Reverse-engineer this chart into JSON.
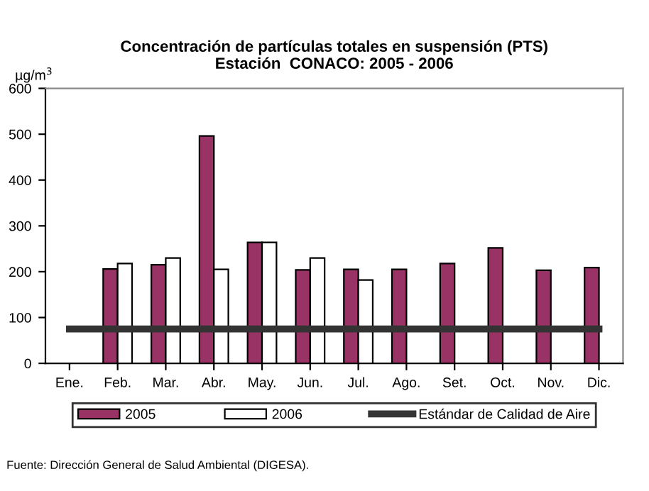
{
  "chart_data": {
    "type": "bar",
    "title": "Concentración de partículas totales en suspensión (PTS)\nEstación  CONACO: 2005 - 2006",
    "ylabel": "µg/m$^{3}$",
    "categories": [
      "Ene.",
      "Feb.",
      "Mar.",
      "Abr.",
      "May.",
      "Jun.",
      "Jul.",
      "Ago.",
      "Set.",
      "Oct.",
      "Nov.",
      "Dic."
    ],
    "series": [
      {
        "name": "2005",
        "color": "#993366",
        "values": [
          null,
          206,
          215,
          496,
          264,
          204,
          205,
          205,
          218,
          252,
          203,
          209
        ]
      },
      {
        "name": "2006",
        "color": "#ffffff",
        "values": [
          null,
          218,
          230,
          205,
          264,
          230,
          182,
          null,
          null,
          null,
          null,
          null
        ]
      },
      {
        "name": "Estándar de Calidad de Aire",
        "type": "line",
        "color": "#333333",
        "values": [
          75,
          75,
          75,
          75,
          75,
          75,
          75,
          75,
          75,
          75,
          75,
          75
        ]
      }
    ],
    "ylim": [
      0,
      600
    ],
    "yticks": [
      0,
      100,
      200,
      300,
      400,
      500,
      600
    ],
    "grid": false,
    "legend": "bottom",
    "annotations": [
      "Fuente: Dirección General de Salud Ambiental (DIGESA)."
    ]
  }
}
